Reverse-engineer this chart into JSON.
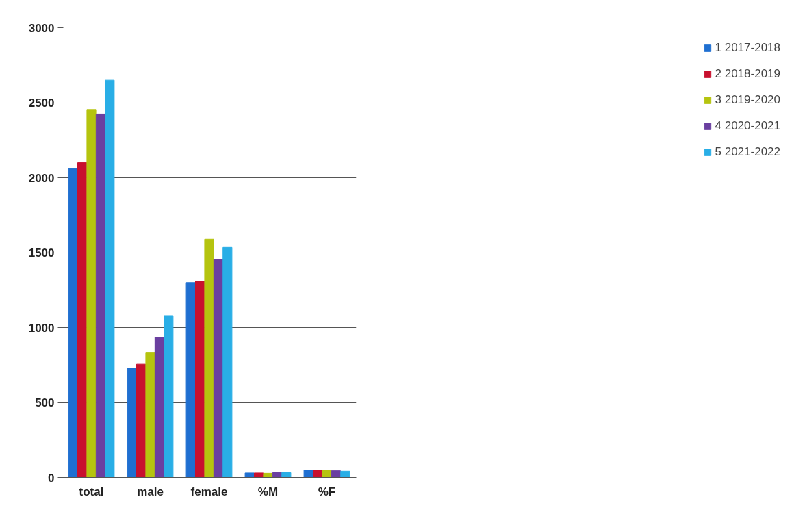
{
  "chart_data": {
    "type": "bar",
    "categories": [
      "total",
      "male",
      "female",
      "%M",
      "%F"
    ],
    "series": [
      {
        "name": "1 2017-2018",
        "color": "#1f6fd1",
        "values": [
          2060,
          730,
          1300,
          30,
          50
        ]
      },
      {
        "name": "2 2018-2019",
        "color": "#c8102e",
        "values": [
          2100,
          755,
          1310,
          30,
          50
        ]
      },
      {
        "name": "3 2019-2020",
        "color": "#b5c40f",
        "values": [
          2455,
          835,
          1590,
          28,
          50
        ]
      },
      {
        "name": "4 2020-2021",
        "color": "#6a3fa0",
        "values": [
          2425,
          935,
          1455,
          32,
          45
        ]
      },
      {
        "name": "5 2021-2022",
        "color": "#29aee6",
        "values": [
          2650,
          1080,
          1535,
          32,
          42
        ]
      }
    ],
    "ylim": [
      0,
      3000
    ],
    "yticks": [
      0,
      500,
      1000,
      1500,
      2000,
      2500,
      3000
    ],
    "grid": "y",
    "legend": "right"
  }
}
